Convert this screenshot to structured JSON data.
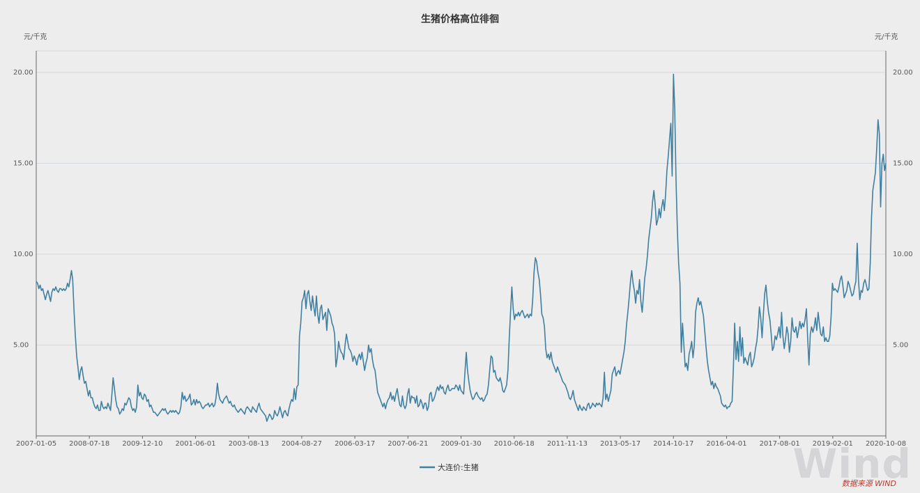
{
  "chart_data": {
    "type": "line",
    "title": "生猪价格高位徘徊",
    "y_unit_left": "元/千克",
    "y_unit_right": "元/千克",
    "ylim": [
      0,
      20
    ],
    "y_ticks": [
      "5.00",
      "10.00",
      "15.00",
      "20.00"
    ],
    "y_tick_values": [
      5,
      10,
      15,
      20
    ],
    "x_tick_labels": [
      "2007-01-05",
      "2008-07-18",
      "2009-12-10",
      "2001-06-01",
      "2003-08-13",
      "2004-08-27",
      "2006-03-17",
      "2007-06-21",
      "2009-01-30",
      "2010-06-18",
      "2011-11-13",
      "2013-05-17",
      "2014-10-17",
      "2016-04-01",
      "2017-08-01",
      "2019-02-01",
      "2020-10-08"
    ],
    "legend_placement": "bottom-center",
    "series": [
      {
        "name": "大连价:生猪",
        "color": "#3f7fa0",
        "values": [
          8.5,
          8.4,
          8.1,
          8.3,
          8.0,
          8.1,
          7.8,
          7.5,
          7.8,
          8.0,
          7.7,
          7.4,
          7.9,
          8.1,
          8.0,
          8.2,
          8.0,
          7.9,
          8.1,
          8.1,
          8.0,
          8.1,
          8.0,
          8.1,
          8.4,
          8.2,
          8.6,
          9.1,
          8.6,
          6.9,
          5.5,
          4.4,
          3.8,
          3.1,
          3.6,
          3.8,
          3.3,
          2.9,
          3.0,
          2.6,
          2.2,
          2.5,
          2.1,
          2.1,
          1.8,
          1.6,
          1.5,
          1.7,
          1.4,
          1.4,
          1.9,
          1.6,
          1.5,
          1.6,
          1.5,
          1.8,
          1.6,
          1.4,
          2.2,
          3.2,
          2.6,
          2.0,
          1.6,
          1.5,
          1.2,
          1.3,
          1.5,
          1.4,
          1.8,
          1.7,
          1.9,
          2.1,
          2.0,
          1.6,
          1.4,
          1.5,
          1.3,
          1.6,
          2.8,
          2.2,
          2.4,
          2.1,
          2.0,
          2.3,
          2.2,
          1.9,
          2.0,
          1.6,
          1.7,
          1.5,
          1.3,
          1.3,
          1.2,
          1.1,
          1.2,
          1.3,
          1.4,
          1.5,
          1.4,
          1.5,
          1.3,
          1.2,
          1.3,
          1.4,
          1.3,
          1.4,
          1.3,
          1.4,
          1.3,
          1.2,
          1.3,
          1.6,
          2.4,
          2.0,
          2.2,
          1.9,
          2.0,
          2.1,
          2.3,
          1.7,
          1.8,
          2.0,
          1.7,
          2.0,
          1.8,
          1.9,
          1.8,
          1.6,
          1.5,
          1.6,
          1.7,
          1.7,
          1.8,
          1.6,
          1.7,
          1.8,
          1.6,
          1.7,
          2.1,
          2.9,
          2.3,
          2.0,
          1.9,
          1.8,
          2.0,
          2.1,
          2.2,
          2.0,
          1.8,
          1.9,
          1.7,
          1.6,
          1.7,
          1.5,
          1.4,
          1.3,
          1.4,
          1.5,
          1.4,
          1.3,
          1.2,
          1.5,
          1.6,
          1.5,
          1.4,
          1.3,
          1.6,
          1.5,
          1.4,
          1.3,
          1.6,
          1.8,
          1.5,
          1.4,
          1.3,
          1.2,
          1.1,
          0.8,
          1.0,
          1.2,
          1.1,
          0.9,
          1.0,
          1.4,
          1.2,
          1.1,
          1.3,
          1.6,
          1.3,
          1.0,
          1.3,
          1.4,
          1.2,
          1.1,
          1.5,
          1.8,
          2.0,
          1.9,
          2.6,
          2.0,
          2.7,
          2.8,
          5.5,
          6.2,
          7.4,
          7.6,
          8.0,
          7.0,
          7.8,
          8.0,
          7.4,
          6.9,
          7.7,
          7.1,
          6.6,
          7.7,
          6.7,
          6.2,
          7.0,
          7.2,
          6.4,
          6.6,
          6.8,
          5.8,
          7.0,
          6.8,
          6.6,
          6.2,
          6.0,
          5.6,
          3.8,
          4.3,
          5.2,
          4.8,
          4.6,
          4.5,
          4.2,
          5.0,
          5.6,
          5.2,
          4.8,
          4.7,
          4.5,
          4.1,
          4.4,
          4.2,
          3.9,
          4.3,
          4.5,
          4.2,
          4.6,
          4.1,
          3.6,
          4.0,
          4.3,
          5.0,
          4.6,
          4.8,
          4.2,
          3.8,
          3.6,
          3.0,
          2.4,
          2.2,
          2.0,
          1.8,
          1.6,
          1.8,
          1.5,
          1.8,
          2.0,
          2.1,
          2.4,
          2.0,
          2.2,
          1.9,
          2.3,
          2.6,
          2.1,
          1.7,
          1.6,
          2.2,
          1.7,
          1.5,
          1.7,
          2.3,
          2.6,
          1.8,
          2.2,
          2.1,
          2.1,
          1.8,
          2.2,
          1.6,
          1.7,
          2.0,
          1.8,
          1.5,
          1.8,
          1.8,
          1.4,
          1.6,
          2.3,
          2.4,
          1.9,
          2.0,
          2.2,
          2.5,
          2.7,
          2.5,
          2.8,
          2.6,
          2.7,
          2.4,
          2.3,
          2.6,
          2.8,
          2.5,
          2.5,
          2.6,
          2.6,
          2.6,
          2.8,
          2.7,
          2.5,
          2.8,
          2.5,
          2.4,
          2.3,
          3.5,
          4.6,
          3.6,
          3.0,
          2.5,
          2.2,
          2.0,
          2.1,
          2.3,
          2.4,
          2.2,
          2.1,
          2.0,
          2.1,
          1.9,
          2.0,
          2.2,
          2.3,
          2.8,
          3.6,
          4.4,
          4.3,
          3.5,
          3.6,
          3.2,
          3.1,
          3.0,
          3.2,
          2.9,
          2.5,
          2.4,
          2.6,
          2.8,
          3.6,
          5.4,
          6.8,
          8.2,
          7.0,
          6.4,
          6.7,
          6.6,
          6.8,
          6.6,
          6.8,
          6.9,
          6.7,
          6.5,
          6.6,
          6.7,
          6.5,
          6.7,
          6.6,
          7.5,
          9.0,
          9.8,
          9.6,
          9.0,
          8.6,
          7.8,
          6.7,
          6.5,
          6.0,
          4.8,
          4.3,
          4.5,
          4.2,
          4.6,
          4.1,
          3.9,
          3.7,
          3.5,
          3.8,
          3.6,
          3.4,
          3.2,
          3.0,
          2.9,
          2.8,
          2.6,
          2.4,
          2.1,
          2.0,
          2.2,
          2.5,
          2.0,
          1.8,
          1.6,
          1.4,
          1.7,
          1.5,
          1.4,
          1.6,
          1.5,
          1.4,
          1.7,
          1.8,
          1.5,
          1.6,
          1.8,
          1.7,
          1.6,
          1.8,
          1.7,
          1.8,
          1.7,
          1.6,
          2.1,
          3.5,
          2.0,
          2.3,
          1.9,
          2.2,
          2.5,
          3.4,
          3.6,
          3.8,
          3.3,
          3.5,
          3.6,
          3.4,
          3.8,
          4.2,
          4.6,
          5.2,
          6.1,
          6.8,
          7.6,
          8.5,
          9.1,
          8.4,
          8.0,
          7.3,
          8.0,
          7.8,
          8.6,
          7.4,
          6.8,
          7.7,
          8.7,
          9.2,
          9.9,
          10.8,
          11.4,
          12.0,
          12.9,
          13.5,
          12.7,
          11.6,
          11.9,
          12.5,
          12.0,
          12.6,
          13.0,
          12.4,
          13.3,
          14.6,
          15.4,
          16.3,
          17.2,
          14.3,
          19.9,
          18.0,
          14.0,
          11.3,
          9.5,
          8.4,
          4.6,
          6.2,
          5.0,
          3.8,
          4.0,
          3.6,
          4.5,
          4.8,
          5.2,
          4.3,
          5.0,
          6.8,
          7.3,
          7.6,
          7.2,
          7.4,
          7.0,
          6.6,
          5.8,
          4.9,
          4.1,
          3.6,
          3.2,
          2.8,
          3.0,
          2.6,
          2.9,
          2.7,
          2.6,
          2.4,
          2.2,
          1.8,
          1.7,
          1.6,
          1.7,
          1.5,
          1.6,
          1.6,
          1.8,
          1.9,
          3.8,
          6.2,
          4.2,
          5.2,
          4.1,
          6.0,
          4.4,
          5.4,
          4.0,
          4.3,
          4.1,
          3.9,
          4.4,
          4.6,
          3.8,
          4.0,
          4.3,
          4.8,
          5.2,
          6.0,
          7.1,
          6.5,
          5.4,
          6.7,
          7.8,
          8.3,
          7.4,
          6.8,
          6.4,
          5.6,
          4.7,
          4.9,
          5.5,
          5.3,
          5.6,
          6.0,
          5.4,
          6.8,
          5.5,
          4.8,
          5.3,
          6.0,
          5.6,
          4.6,
          5.2,
          6.5,
          5.8,
          5.7,
          6.0,
          5.4,
          5.8,
          6.3,
          5.9,
          6.2,
          6.0,
          6.4,
          7.0,
          5.4,
          3.9,
          5.6,
          6.0,
          5.7,
          6.0,
          6.5,
          5.8,
          6.8,
          6.2,
          5.6,
          5.5,
          6.0,
          5.2,
          5.4,
          5.2,
          5.2,
          5.5,
          6.6,
          8.4,
          8.0,
          8.1,
          8.0,
          7.9,
          8.2,
          8.6,
          8.8,
          8.3,
          7.6,
          7.8,
          8.0,
          8.5,
          8.3,
          8.0,
          7.7,
          7.8,
          8.2,
          8.5,
          10.6,
          8.6,
          7.5,
          8.0,
          7.9,
          8.4,
          8.6,
          8.3,
          8.0,
          8.1,
          9.5,
          12.0,
          13.5,
          14.0,
          14.5,
          15.8,
          17.4,
          16.6,
          12.6,
          15.0,
          15.5,
          14.6,
          15.0
        ]
      }
    ]
  },
  "watermark": {
    "text": "Wind",
    "sub": "数据来源 WIND"
  }
}
